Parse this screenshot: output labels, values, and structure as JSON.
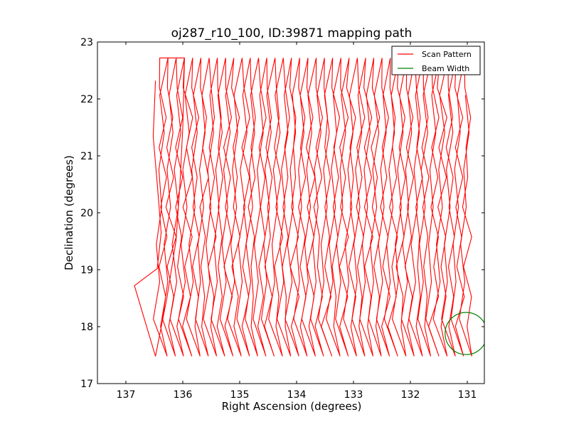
{
  "chart_data": {
    "type": "line",
    "title": "oj287_r10_100, ID:39871 mapping path",
    "xlabel": "Right Ascension (degrees)",
    "ylabel": "Declination (degrees)",
    "xlim": [
      137.5,
      130.7
    ],
    "ylim": [
      17,
      23
    ],
    "x_inverted": true,
    "xticks": [
      137,
      136,
      135,
      134,
      133,
      132,
      131
    ],
    "yticks": [
      17,
      18,
      19,
      20,
      21,
      22,
      23
    ],
    "grid": false,
    "legend_placement": "top-right",
    "legend": [
      {
        "label": "Scan Pattern",
        "color": "#ff0000"
      },
      {
        "label": "Beam Width",
        "color": "#008000"
      }
    ],
    "series": [
      {
        "name": "Scan Pattern",
        "color": "#ff0000",
        "columns": 39,
        "ra_start": 136.5,
        "ra_end": 131.0,
        "dec_range": [
          17.48,
          22.72
        ],
        "points": [
          [
            136.48,
            22.32
          ],
          [
            136.52,
            21.34
          ],
          [
            136.45,
            20.52
          ],
          [
            136.38,
            19.65
          ],
          [
            136.45,
            19.02
          ],
          [
            136.85,
            18.72
          ],
          [
            136.48,
            17.48
          ],
          [
            136.28,
            18.5
          ],
          [
            136.12,
            19.5
          ],
          [
            136.05,
            20.5
          ],
          [
            136.0,
            21.5
          ],
          [
            135.97,
            22.72
          ]
        ]
      },
      {
        "name": "Beam Width",
        "color": "#008000",
        "type": "circle",
        "center": [
          131.02,
          17.88
        ],
        "radius_deg": 0.37
      }
    ]
  }
}
